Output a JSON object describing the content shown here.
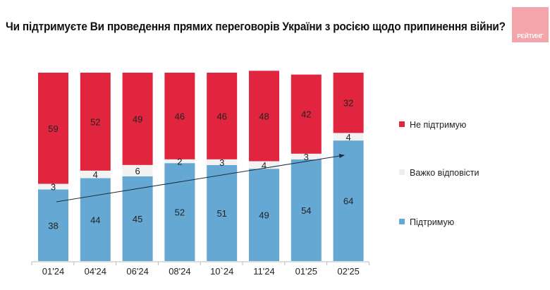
{
  "chart_data": {
    "type": "bar",
    "stacked": true,
    "title": "Чи підтримуєте Ви проведення прямих переговорів України з росією щодо припинення війни?",
    "categories": [
      "01'24",
      "04'24",
      "06'24",
      "08'24",
      "10`24",
      "11'24",
      "01'25",
      "02'25"
    ],
    "series": [
      {
        "name": "Підтримую",
        "color": "#65a8d3",
        "values": [
          38,
          44,
          45,
          52,
          51,
          49,
          54,
          64
        ]
      },
      {
        "name": "Важко відповісти",
        "color": "#f2f2f2",
        "values": [
          3,
          4,
          6,
          2,
          3,
          4,
          3,
          4
        ]
      },
      {
        "name": "Не підтримую",
        "color": "#e1253e",
        "values": [
          59,
          52,
          49,
          46,
          46,
          48,
          42,
          32
        ]
      }
    ],
    "legend_placement": "right",
    "trend_arrow": true,
    "grid": false
  },
  "logo": {
    "text": "РЕЙТИНГ"
  }
}
